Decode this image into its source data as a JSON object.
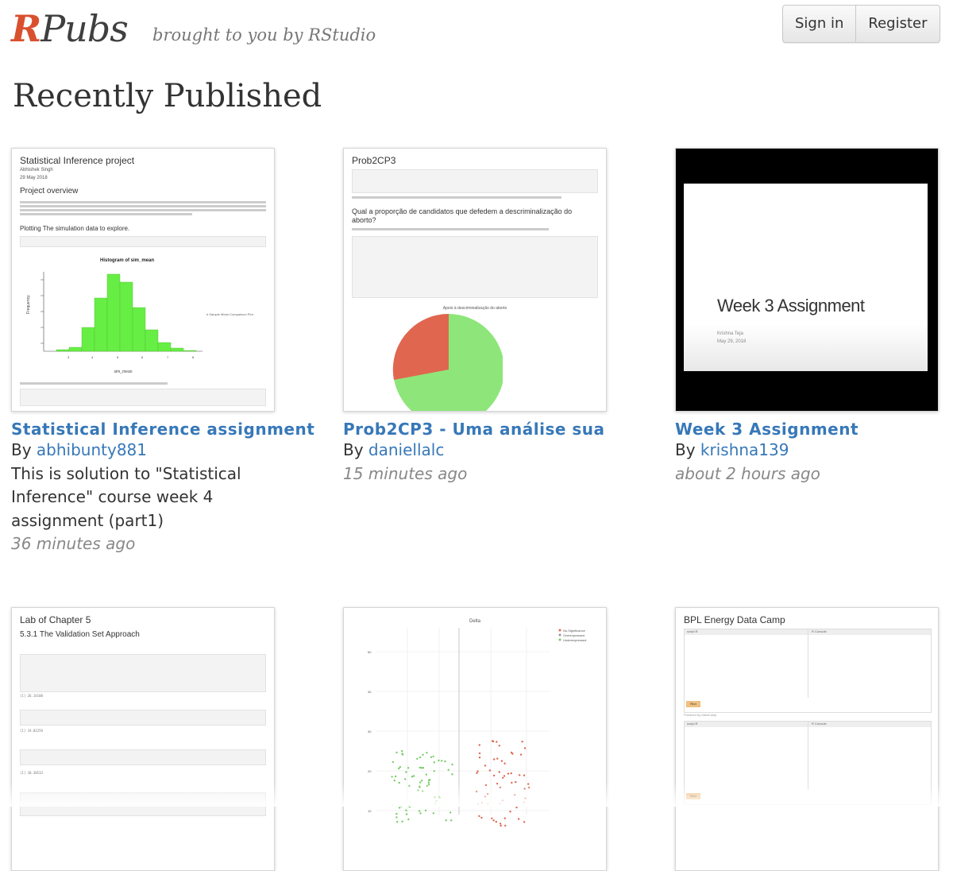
{
  "header": {
    "logo_r": "R",
    "logo_rest": "Pubs",
    "tagline": "brought to you by RStudio",
    "sign_in": "Sign in",
    "register": "Register"
  },
  "page": {
    "heading": "Recently Published"
  },
  "docs": [
    {
      "title": "Statistical Inference assignment",
      "by": "By",
      "author": "abhibunty881",
      "description_lines": [
        "This is solution to \"Statistical",
        "Inference\" course week 4",
        "assignment (part1)"
      ],
      "time": "36 minutes ago",
      "preview": {
        "title": "Statistical Inference project",
        "author": "Abhishek Singh",
        "date": "29 May 2018",
        "section": "Project overview",
        "subsection": "Plotting The simulation data to explore.",
        "plot_title": "Histogram of sim_mean",
        "xlabel": "sim_mean",
        "ylabel": "Frequency",
        "legend": "# Sample Mean Comparison Plot"
      }
    },
    {
      "title": "Prob2CP3 - Uma análise sua",
      "by": "By",
      "author": "daniellalc",
      "time": "15 minutes ago",
      "preview": {
        "title": "Prob2CP3",
        "question": "Qual a proporção de candidatos que defedem a descriminalização do aborto?",
        "chart_title": "Apoio à descriminalização do aborto"
      }
    },
    {
      "title": "Week 3 Assignment",
      "by": "By",
      "author": "krishna139",
      "time": "about 2 hours ago",
      "preview": {
        "slide_title": "Week 3 Assignment",
        "author": "Krishna Teja",
        "date": "May 29, 2018"
      }
    },
    {
      "title": "",
      "preview": {
        "title": "Lab of Chapter 5",
        "subtitle": "5.3.1 The Validation Set Approach",
        "output_1": "[1] 26.14108",
        "output_2": "[1] 19.82259",
        "output_3": "[1] 20.38533"
      }
    },
    {
      "title": "",
      "preview": {
        "plot_title": "Delta",
        "legend": [
          "No.Significance",
          "Overexpressed",
          "Underexpressed"
        ]
      }
    },
    {
      "title": "",
      "preview": {
        "title": "BPL Energy Data Camp",
        "powered": "Powered by DataCamp",
        "run": "Run",
        "tab_script": "script.R",
        "tab_console": "R Console"
      }
    }
  ],
  "colors": {
    "brand_red": "#d9502f",
    "link_blue": "#3778b8",
    "hist_green": "#66ee44",
    "pie_red": "#e06650",
    "pie_green": "#8ee67a"
  }
}
